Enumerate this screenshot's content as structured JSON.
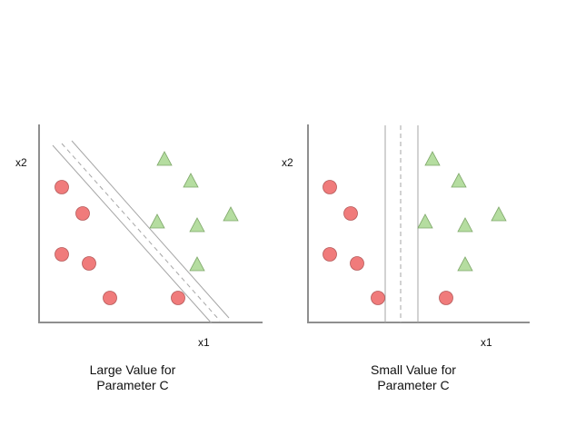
{
  "colors": {
    "class_a": "#f07b7b",
    "class_b": "#b5dda0",
    "axis": "#8f8f8f",
    "margin": "#a6a6a6"
  },
  "legend_shapes": {
    "class_a": "circle",
    "class_b": "triangle"
  },
  "panels": [
    {
      "x_label": "x1",
      "y_label": "x2",
      "caption_line1": "Large Value for",
      "caption_line2": "Parameter C"
    },
    {
      "x_label": "x1",
      "y_label": "x2",
      "caption_line1": "Small Value for",
      "caption_line2": "Parameter C"
    }
  ]
}
